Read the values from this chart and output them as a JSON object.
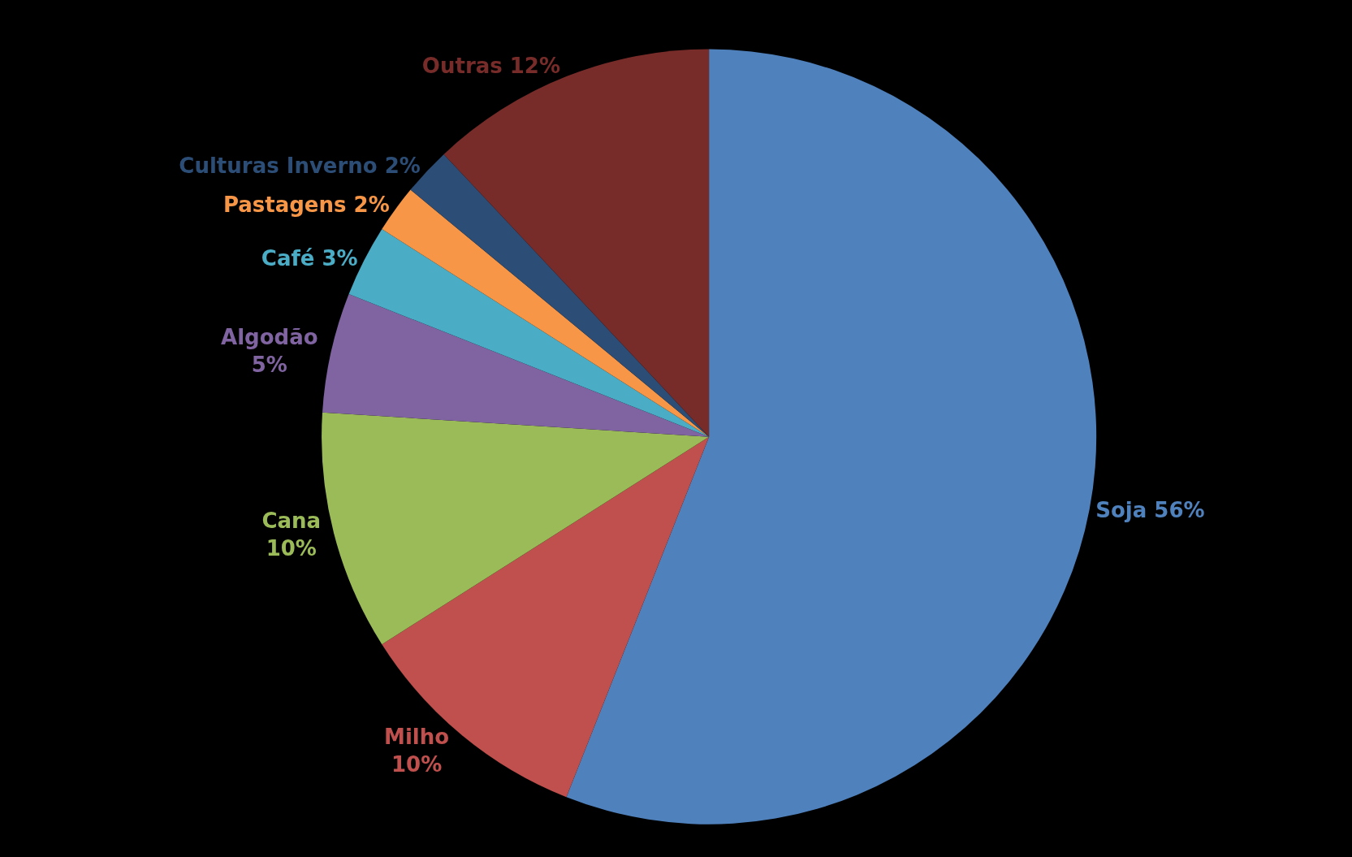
{
  "chart_data": {
    "type": "pie",
    "categories": [
      "Soja",
      "Milho",
      "Cana",
      "Algodão",
      "Café",
      "Pastagens",
      "Culturas Inverno",
      "Outras"
    ],
    "values": [
      56,
      10,
      10,
      5,
      3,
      2,
      2,
      12
    ],
    "colors": [
      "#4f81bd",
      "#c0504d",
      "#9bbb59",
      "#8064a2",
      "#4bacc6",
      "#f79646",
      "#2c4d75",
      "#772c2a"
    ],
    "value_labels": [
      "56%",
      "10%",
      "10%",
      "5%",
      "3%",
      "2%",
      "2%",
      "12%"
    ],
    "legend": false
  }
}
